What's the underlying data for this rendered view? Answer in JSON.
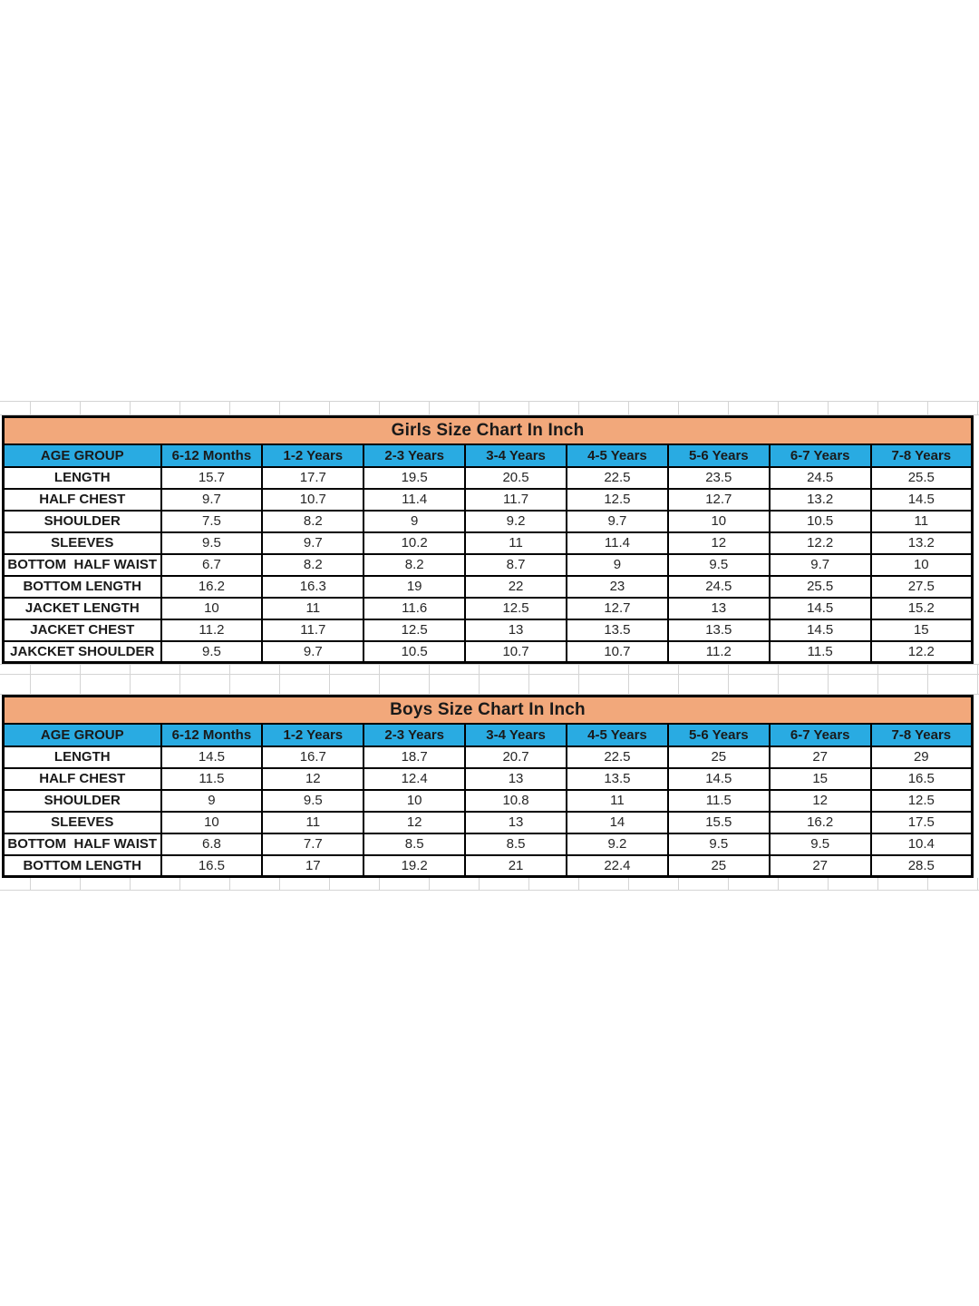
{
  "colors": {
    "title_bg": "#F2A87B",
    "header_bg": "#29ABE2",
    "border": "#000000",
    "gridline": "#D4D4D4",
    "text": "#1A1A1A",
    "page_bg": "#FFFFFF"
  },
  "tables": [
    {
      "id": "girls",
      "title": "Girls Size Chart In Inch",
      "columns": [
        "AGE GROUP",
        "6-12 Months",
        "1-2 Years",
        "2-3 Years",
        "3-4 Years",
        "4-5 Years",
        "5-6 Years",
        "6-7 Years",
        "7-8 Years"
      ],
      "rows": [
        {
          "label": "LENGTH",
          "values": [
            "15.7",
            "17.7",
            "19.5",
            "20.5",
            "22.5",
            "23.5",
            "24.5",
            "25.5"
          ]
        },
        {
          "label": "HALF CHEST",
          "values": [
            "9.7",
            "10.7",
            "11.4",
            "11.7",
            "12.5",
            "12.7",
            "13.2",
            "14.5"
          ]
        },
        {
          "label": "SHOULDER",
          "values": [
            "7.5",
            "8.2",
            "9",
            "9.2",
            "9.7",
            "10",
            "10.5",
            "11"
          ]
        },
        {
          "label": "SLEEVES",
          "values": [
            "9.5",
            "9.7",
            "10.2",
            "11",
            "11.4",
            "12",
            "12.2",
            "13.2"
          ]
        },
        {
          "label": "BOTTOM  HALF WAIST",
          "values": [
            "6.7",
            "8.2",
            "8.2",
            "8.7",
            "9",
            "9.5",
            "9.7",
            "10"
          ]
        },
        {
          "label": "BOTTOM LENGTH",
          "values": [
            "16.2",
            "16.3",
            "19",
            "22",
            "23",
            "24.5",
            "25.5",
            "27.5"
          ]
        },
        {
          "label": "JACKET LENGTH",
          "values": [
            "10",
            "11",
            "11.6",
            "12.5",
            "12.7",
            "13",
            "14.5",
            "15.2"
          ]
        },
        {
          "label": "JACKET CHEST",
          "values": [
            "11.2",
            "11.7",
            "12.5",
            "13",
            "13.5",
            "13.5",
            "14.5",
            "15"
          ]
        },
        {
          "label": "JAKCKET SHOULDER",
          "values": [
            "9.5",
            "9.7",
            "10.5",
            "10.7",
            "10.7",
            "11.2",
            "11.5",
            "12.2"
          ]
        }
      ]
    },
    {
      "id": "boys",
      "title": "Boys Size Chart In Inch",
      "columns": [
        "AGE GROUP",
        "6-12 Months",
        "1-2 Years",
        "2-3 Years",
        "3-4 Years",
        "4-5 Years",
        "5-6 Years",
        "6-7 Years",
        "7-8 Years"
      ],
      "rows": [
        {
          "label": "LENGTH",
          "values": [
            "14.5",
            "16.7",
            "18.7",
            "20.7",
            "22.5",
            "25",
            "27",
            "29"
          ]
        },
        {
          "label": "HALF CHEST",
          "values": [
            "11.5",
            "12",
            "12.4",
            "13",
            "13.5",
            "14.5",
            "15",
            "16.5"
          ]
        },
        {
          "label": "SHOULDER",
          "values": [
            "9",
            "9.5",
            "10",
            "10.8",
            "11",
            "11.5",
            "12",
            "12.5"
          ]
        },
        {
          "label": "SLEEVES",
          "values": [
            "10",
            "11",
            "12",
            "13",
            "14",
            "15.5",
            "16.2",
            "17.5"
          ]
        },
        {
          "label": "BOTTOM  HALF WAIST",
          "values": [
            "6.8",
            "7.7",
            "8.5",
            "8.5",
            "9.2",
            "9.5",
            "9.5",
            "10.4"
          ]
        },
        {
          "label": "BOTTOM LENGTH",
          "values": [
            "16.5",
            "17",
            "19.2",
            "21",
            "22.4",
            "25",
            "27",
            "28.5"
          ]
        }
      ]
    }
  ]
}
